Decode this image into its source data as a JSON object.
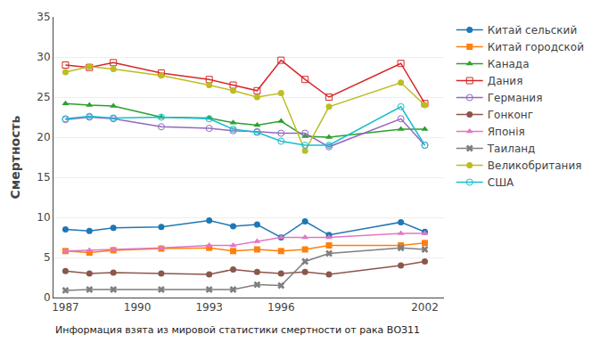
{
  "chart_data": {
    "type": "line",
    "y_label": "Смертность",
    "annotations": [
      "Информация взята из мировой статистики смертности от рака ВОЗ11"
    ],
    "x": [
      1987,
      1988,
      1989,
      1991,
      1993,
      1994,
      1995,
      1996,
      1997,
      1998,
      2001,
      2002
    ],
    "xlim": [
      1986.5,
      2002.8
    ],
    "xticks": [
      1987,
      1990,
      1993,
      1996,
      2002
    ],
    "ylim": [
      0,
      35
    ],
    "yticks": [
      0,
      5,
      10,
      15,
      20,
      25,
      30,
      35
    ],
    "grid": "y",
    "legend": "right",
    "series": [
      {
        "name": "Китай сельский",
        "marker": "circle",
        "values": [
          8.5,
          8.3,
          8.7,
          8.8,
          9.6,
          8.9,
          9.1,
          7.5,
          9.5,
          7.8,
          9.4,
          8.2
        ]
      },
      {
        "name": "Китай городской",
        "marker": "square",
        "values": [
          5.8,
          5.6,
          5.9,
          6.1,
          6.2,
          5.8,
          6.0,
          5.8,
          6.0,
          6.5,
          6.5,
          6.8
        ]
      },
      {
        "name": "Канада",
        "marker": "triangle-up",
        "values": [
          24.2,
          24.0,
          23.9,
          22.5,
          22.4,
          21.8,
          21.5,
          22.0,
          20.1,
          20.0,
          21.0,
          21.0
        ]
      },
      {
        "name": "Дания",
        "marker": "square-open",
        "values": [
          29.0,
          28.7,
          29.3,
          28.0,
          27.2,
          26.5,
          25.8,
          29.6,
          27.2,
          25.0,
          29.2,
          24.2
        ]
      },
      {
        "name": "Германия",
        "marker": "circle-open",
        "values": [
          22.2,
          22.5,
          22.3,
          21.3,
          21.1,
          20.8,
          20.7,
          20.5,
          20.5,
          18.8,
          22.3,
          19.0
        ]
      },
      {
        "name": "Гонконг",
        "marker": "circle",
        "values": [
          3.3,
          3.0,
          3.1,
          3.0,
          2.9,
          3.5,
          3.2,
          3.0,
          3.2,
          2.9,
          4.0,
          4.5
        ]
      },
      {
        "name": "Японія",
        "marker": "triangle-up",
        "values": [
          5.8,
          5.9,
          6.0,
          6.2,
          6.5,
          6.5,
          7.0,
          7.5,
          7.5,
          7.5,
          8.0,
          8.0
        ]
      },
      {
        "name": "Таиланд",
        "marker": "x",
        "values": [
          0.9,
          1.0,
          1.0,
          1.0,
          1.0,
          1.0,
          1.6,
          1.5,
          4.5,
          5.5,
          6.2,
          6.0
        ]
      },
      {
        "name": "Великобритания",
        "marker": "circle",
        "values": [
          28.1,
          28.8,
          28.5,
          27.7,
          26.5,
          25.8,
          25.0,
          25.5,
          18.3,
          23.8,
          26.8,
          24.0
        ]
      },
      {
        "name": "США",
        "marker": "circle-open",
        "values": [
          22.3,
          22.6,
          22.4,
          22.5,
          22.3,
          21.0,
          20.6,
          19.5,
          19.0,
          19.0,
          23.8,
          19.0
        ]
      }
    ]
  }
}
